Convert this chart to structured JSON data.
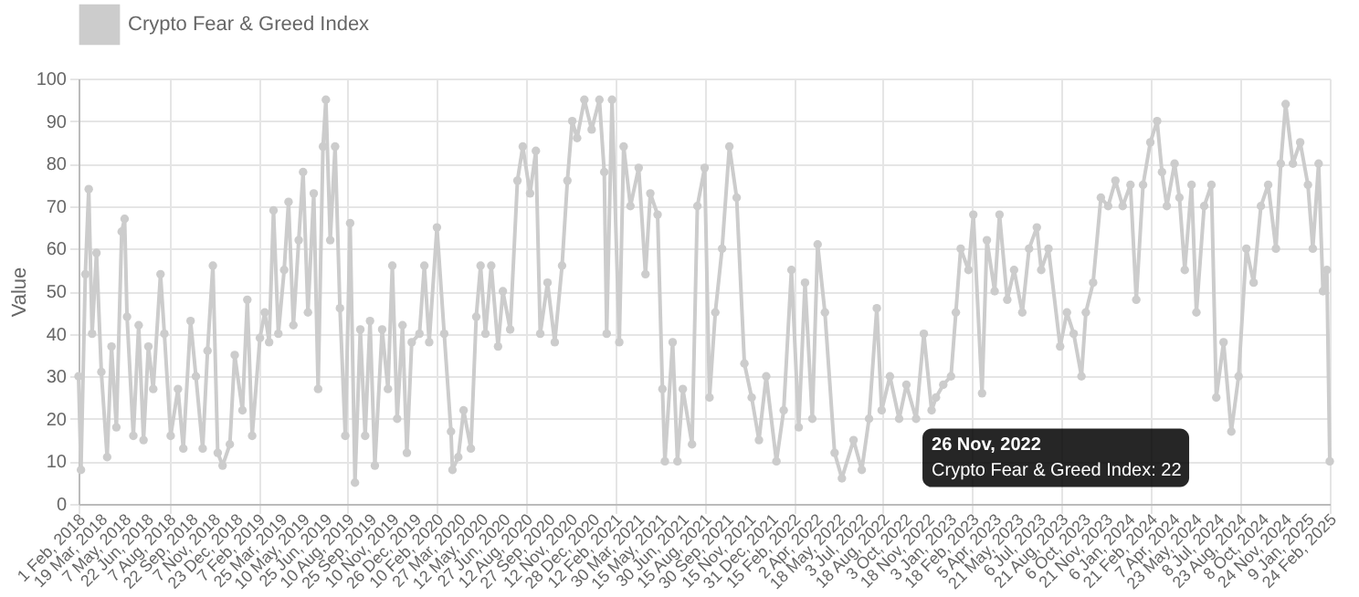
{
  "chart_data": {
    "type": "line",
    "ylabel": "Value",
    "legend": "top",
    "grid": true,
    "marker": "circle",
    "line_style": "solid",
    "ylim": [
      0,
      100
    ],
    "yticks": [
      0,
      10,
      20,
      30,
      40,
      50,
      60,
      70,
      80,
      90,
      100
    ],
    "xlim": [
      "2018-02-01",
      "2025-02-24"
    ],
    "xticks": [
      {
        "value": "2018-02-01",
        "label": "1 Feb, 2018"
      },
      {
        "value": "2018-03-19",
        "label": "19 Mar, 2018"
      },
      {
        "value": "2018-05-07",
        "label": "7 May, 2018"
      },
      {
        "value": "2018-06-22",
        "label": "22 Jun, 2018"
      },
      {
        "value": "2018-08-07",
        "label": "7 Aug, 2018"
      },
      {
        "value": "2018-09-22",
        "label": "22 Sep, 2018"
      },
      {
        "value": "2018-11-07",
        "label": "7 Nov, 2018"
      },
      {
        "value": "2018-12-23",
        "label": "23 Dec, 2018"
      },
      {
        "value": "2019-02-07",
        "label": "7 Feb, 2019"
      },
      {
        "value": "2019-03-25",
        "label": "25 Mar, 2019"
      },
      {
        "value": "2019-05-10",
        "label": "10 May, 2019"
      },
      {
        "value": "2019-06-25",
        "label": "25 Jun, 2019"
      },
      {
        "value": "2019-08-10",
        "label": "10 Aug, 2019"
      },
      {
        "value": "2019-09-25",
        "label": "25 Sep, 2019"
      },
      {
        "value": "2019-11-10",
        "label": "10 Nov, 2019"
      },
      {
        "value": "2019-12-26",
        "label": "26 Dec, 2019"
      },
      {
        "value": "2020-02-10",
        "label": "10 Feb, 2020"
      },
      {
        "value": "2020-03-27",
        "label": "27 Mar, 2020"
      },
      {
        "value": "2020-05-12",
        "label": "12 May, 2020"
      },
      {
        "value": "2020-06-27",
        "label": "27 Jun, 2020"
      },
      {
        "value": "2020-08-12",
        "label": "12 Aug, 2020"
      },
      {
        "value": "2020-09-27",
        "label": "27 Sep, 2020"
      },
      {
        "value": "2020-11-12",
        "label": "12 Nov, 2020"
      },
      {
        "value": "2020-12-28",
        "label": "28 Dec, 2020"
      },
      {
        "value": "2021-02-12",
        "label": "12 Feb, 2021"
      },
      {
        "value": "2021-03-30",
        "label": "30 Mar, 2021"
      },
      {
        "value": "2021-05-15",
        "label": "15 May, 2021"
      },
      {
        "value": "2021-06-30",
        "label": "30 Jun, 2021"
      },
      {
        "value": "2021-08-15",
        "label": "15 Aug, 2021"
      },
      {
        "value": "2021-09-30",
        "label": "30 Sep, 2021"
      },
      {
        "value": "2021-11-15",
        "label": "15 Nov, 2021"
      },
      {
        "value": "2021-12-31",
        "label": "31 Dec, 2021"
      },
      {
        "value": "2022-02-15",
        "label": "15 Feb, 2022"
      },
      {
        "value": "2022-04-02",
        "label": "2 Apr, 2022"
      },
      {
        "value": "2022-05-18",
        "label": "18 May, 2022"
      },
      {
        "value": "2022-07-03",
        "label": "3 Jul, 2022"
      },
      {
        "value": "2022-08-18",
        "label": "18 Aug, 2022"
      },
      {
        "value": "2022-10-03",
        "label": "3 Oct, 2022"
      },
      {
        "value": "2022-11-18",
        "label": "18 Nov, 2022"
      },
      {
        "value": "2023-01-03",
        "label": "3 Jan, 2023"
      },
      {
        "value": "2023-02-18",
        "label": "18 Feb, 2023"
      },
      {
        "value": "2023-04-05",
        "label": "5 Apr, 2023"
      },
      {
        "value": "2023-05-21",
        "label": "21 May, 2023"
      },
      {
        "value": "2023-07-06",
        "label": "6 Jul, 2023"
      },
      {
        "value": "2023-08-21",
        "label": "21 Aug, 2023"
      },
      {
        "value": "2023-10-06",
        "label": "6 Oct, 2023"
      },
      {
        "value": "2023-11-21",
        "label": "21 Nov, 2023"
      },
      {
        "value": "2024-01-06",
        "label": "6 Jan, 2024"
      },
      {
        "value": "2024-02-21",
        "label": "21 Feb, 2024"
      },
      {
        "value": "2024-04-07",
        "label": "7 Apr, 2024"
      },
      {
        "value": "2024-05-23",
        "label": "23 May, 2024"
      },
      {
        "value": "2024-07-08",
        "label": "8 Jul, 2024"
      },
      {
        "value": "2024-08-23",
        "label": "23 Aug, 2024"
      },
      {
        "value": "2024-10-08",
        "label": "8 Oct, 2024"
      },
      {
        "value": "2024-11-24",
        "label": "24 Nov, 2024"
      },
      {
        "value": "2025-01-09",
        "label": "9 Jan, 2025"
      },
      {
        "value": "2025-02-24",
        "label": "24 Feb, 2025"
      }
    ],
    "annotations": [
      {
        "text": "26 Nov, 2022",
        "x": "2022-11-26",
        "y": 22
      },
      {
        "text": "Crypto Fear & Greed Index: 22",
        "x": "2022-11-26",
        "y": 22
      }
    ],
    "x": [
      "2018-02-01",
      "2018-02-06",
      "2018-02-15",
      "2018-02-22",
      "2018-03-01",
      "2018-03-10",
      "2018-03-20",
      "2018-04-01",
      "2018-04-10",
      "2018-04-20",
      "2018-05-01",
      "2018-05-07",
      "2018-05-12",
      "2018-05-25",
      "2018-06-05",
      "2018-06-15",
      "2018-06-25",
      "2018-07-05",
      "2018-07-20",
      "2018-07-28",
      "2018-08-10",
      "2018-08-25",
      "2018-09-05",
      "2018-09-20",
      "2018-10-01",
      "2018-10-15",
      "2018-10-25",
      "2018-11-05",
      "2018-11-15",
      "2018-11-25",
      "2018-12-10",
      "2018-12-20",
      "2019-01-05",
      "2019-01-15",
      "2019-01-25",
      "2019-02-10",
      "2019-02-20",
      "2019-03-01",
      "2019-03-10",
      "2019-03-20",
      "2019-04-01",
      "2019-04-10",
      "2019-04-20",
      "2019-05-01",
      "2019-05-10",
      "2019-05-20",
      "2019-06-01",
      "2019-06-10",
      "2019-06-20",
      "2019-06-26",
      "2019-07-05",
      "2019-07-15",
      "2019-07-25",
      "2019-08-05",
      "2019-08-15",
      "2019-08-25",
      "2019-09-05",
      "2019-09-15",
      "2019-09-25",
      "2019-10-05",
      "2019-10-20",
      "2019-11-01",
      "2019-11-10",
      "2019-11-20",
      "2019-12-01",
      "2019-12-10",
      "2019-12-20",
      "2020-01-05",
      "2020-01-15",
      "2020-01-25",
      "2020-02-10",
      "2020-02-25",
      "2020-03-10",
      "2020-03-13",
      "2020-03-25",
      "2020-04-05",
      "2020-04-20",
      "2020-05-01",
      "2020-05-10",
      "2020-05-20",
      "2020-06-01",
      "2020-06-15",
      "2020-06-25",
      "2020-07-10",
      "2020-07-25",
      "2020-08-05",
      "2020-08-20",
      "2020-09-01",
      "2020-09-10",
      "2020-09-25",
      "2020-10-10",
      "2020-10-25",
      "2020-11-05",
      "2020-11-15",
      "2020-11-25",
      "2020-12-10",
      "2020-12-25",
      "2021-01-10",
      "2021-01-20",
      "2021-01-25",
      "2021-02-05",
      "2021-02-20",
      "2021-03-01",
      "2021-03-15",
      "2021-04-01",
      "2021-04-15",
      "2021-04-25",
      "2021-05-10",
      "2021-05-20",
      "2021-05-25",
      "2021-06-10",
      "2021-06-20",
      "2021-07-01",
      "2021-07-20",
      "2021-07-31",
      "2021-08-15",
      "2021-08-25",
      "2021-09-06",
      "2021-09-20",
      "2021-10-05",
      "2021-10-20",
      "2021-11-05",
      "2021-11-20",
      "2021-12-05",
      "2021-12-20",
      "2022-01-10",
      "2022-01-25",
      "2022-02-10",
      "2022-02-25",
      "2022-03-10",
      "2022-03-25",
      "2022-04-05",
      "2022-04-20",
      "2022-05-10",
      "2022-05-25",
      "2022-06-18",
      "2022-07-05",
      "2022-07-20",
      "2022-08-05",
      "2022-08-15",
      "2022-09-01",
      "2022-09-20",
      "2022-10-05",
      "2022-10-25",
      "2022-11-10",
      "2022-11-26",
      "2022-12-05",
      "2022-12-20",
      "2023-01-05",
      "2023-01-15",
      "2023-01-25",
      "2023-02-10",
      "2023-02-20",
      "2023-03-10",
      "2023-03-20",
      "2023-04-05",
      "2023-04-15",
      "2023-05-01",
      "2023-05-15",
      "2023-06-01",
      "2023-06-15",
      "2023-07-01",
      "2023-07-10",
      "2023-07-25",
      "2023-08-18",
      "2023-09-01",
      "2023-09-15",
      "2023-10-01",
      "2023-10-10",
      "2023-10-25",
      "2023-11-10",
      "2023-11-25",
      "2023-12-10",
      "2023-12-25",
      "2024-01-10",
      "2024-01-22",
      "2024-02-05",
      "2024-02-20",
      "2024-03-05",
      "2024-03-15",
      "2024-03-25",
      "2024-04-10",
      "2024-04-20",
      "2024-05-01",
      "2024-05-15",
      "2024-05-25",
      "2024-06-10",
      "2024-06-25",
      "2024-07-05",
      "2024-07-20",
      "2024-08-05",
      "2024-08-20",
      "2024-09-05",
      "2024-09-20",
      "2024-10-05",
      "2024-10-20",
      "2024-11-05",
      "2024-11-15",
      "2024-11-25",
      "2024-12-10",
      "2024-12-25",
      "2025-01-10",
      "2025-01-20",
      "2025-02-01",
      "2025-02-10",
      "2025-02-18",
      "2025-02-24"
    ],
    "series": [
      {
        "name": "Crypto Fear & Greed Index",
        "color": "#cccccc",
        "values": [
          30,
          8,
          54,
          74,
          40,
          59,
          31,
          11,
          37,
          18,
          64,
          67,
          44,
          16,
          42,
          15,
          37,
          27,
          54,
          40,
          16,
          27,
          13,
          43,
          30,
          13,
          36,
          56,
          12,
          9,
          14,
          35,
          22,
          48,
          16,
          39,
          45,
          38,
          69,
          40,
          55,
          71,
          42,
          62,
          78,
          45,
          73,
          27,
          84,
          95,
          62,
          84,
          46,
          16,
          66,
          5,
          41,
          16,
          43,
          9,
          41,
          27,
          56,
          20,
          42,
          12,
          38,
          40,
          56,
          38,
          65,
          40,
          17,
          8,
          11,
          22,
          13,
          44,
          56,
          40,
          56,
          37,
          50,
          41,
          76,
          84,
          73,
          83,
          40,
          52,
          38,
          56,
          76,
          90,
          86,
          95,
          88,
          95,
          78,
          40,
          95,
          38,
          84,
          70,
          79,
          54,
          73,
          68,
          27,
          10,
          38,
          10,
          27,
          14,
          70,
          79,
          25,
          45,
          60,
          84,
          72,
          33,
          25,
          15,
          30,
          10,
          22,
          55,
          18,
          52,
          20,
          61,
          45,
          12,
          6,
          15,
          8,
          20,
          46,
          22,
          30,
          20,
          28,
          20,
          40,
          22,
          25,
          28,
          30,
          45,
          60,
          55,
          68,
          26,
          62,
          50,
          68,
          48,
          55,
          45,
          60,
          65,
          55,
          60,
          37,
          45,
          40,
          30,
          45,
          52,
          72,
          70,
          76,
          70,
          75,
          48,
          75,
          85,
          90,
          78,
          70,
          80,
          72,
          55,
          75,
          45,
          70,
          75,
          25,
          38,
          17,
          30,
          60,
          52,
          70,
          75,
          60,
          80,
          94,
          80,
          85,
          75,
          60,
          80,
          50,
          55,
          10
        ]
      }
    ]
  }
}
